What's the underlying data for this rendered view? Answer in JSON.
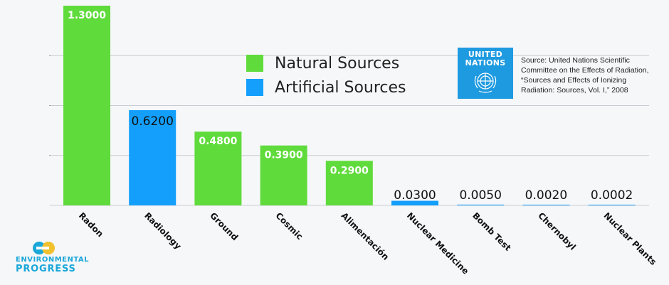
{
  "chart_data": {
    "type": "bar",
    "categories": [
      "Radon",
      "Radiology",
      "Ground",
      "Cosmic",
      "Alimentación",
      "Nuclear Medicine",
      "Bomb Test",
      "Chernobyl",
      "Nuclear Plants"
    ],
    "values": [
      1.3,
      0.62,
      0.48,
      0.39,
      0.29,
      0.03,
      0.005,
      0.002,
      0.0002
    ],
    "value_labels": [
      "1.3000",
      "0.6200",
      "0.4800",
      "0.3900",
      "0.2900",
      "0.0300",
      "0.0050",
      "0.0020",
      "0.0002"
    ],
    "source_types": [
      "natural",
      "artificial",
      "natural",
      "natural",
      "natural",
      "artificial",
      "artificial",
      "artificial",
      "artificial"
    ],
    "ylim": [
      0,
      1.3
    ],
    "grid": true,
    "legend": {
      "position": "top-center",
      "entries": [
        {
          "label": "Natural Sources",
          "color": "#5fdb3b"
        },
        {
          "label": "Artificial Sources",
          "color": "#139ffb"
        }
      ]
    },
    "colors": {
      "natural": "#5fdb3b",
      "artificial": "#139ffb"
    }
  },
  "un_logo": {
    "line1": "UNITED",
    "line2": "NATIONS"
  },
  "source_lines": [
    "Source: United Nations Scientific",
    "Committee on the Effects of Radiation,",
    "“Sources and Effects of Ionizing",
    "Radiation: Sources, Vol. I,” 2008"
  ],
  "branding": {
    "line1": "ENVIRONMENTAL",
    "line2": "PROGRESS"
  }
}
